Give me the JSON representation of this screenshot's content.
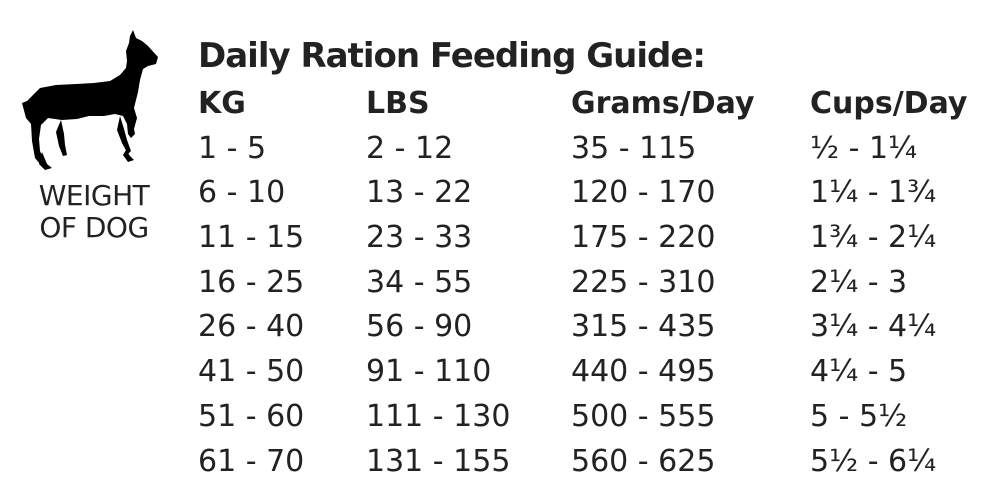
{
  "dog_panel": {
    "icon": "doberman-silhouette-icon",
    "label_line1": "WEIGHT",
    "label_line2": "OF DOG"
  },
  "guide": {
    "title": "Daily Ration Feeding Guide:",
    "columns": [
      "KG",
      "LBS",
      "Grams/Day",
      "Cups/Day"
    ],
    "rows": [
      [
        "1 - 5",
        "2 - 12",
        "35 - 115",
        "½ - 1¼"
      ],
      [
        "6 - 10",
        "13 - 22",
        "120 - 170",
        "1¼ - 1¾"
      ],
      [
        "11 - 15",
        "23 - 33",
        "175 - 220",
        "1¾ - 2¼"
      ],
      [
        "16 - 25",
        "34 - 55",
        "225 - 310",
        "2¼ - 3"
      ],
      [
        "26 - 40",
        "56 - 90",
        "315 - 435",
        "3¼ - 4¼"
      ],
      [
        "41 - 50",
        "91 - 110",
        "440 - 495",
        "4¼ - 5"
      ],
      [
        "51 - 60",
        "111 - 130",
        "500 - 555",
        "5 - 5½"
      ],
      [
        "61 - 70",
        "131 - 155",
        "560 - 625",
        "5½ - 6¼"
      ]
    ]
  }
}
